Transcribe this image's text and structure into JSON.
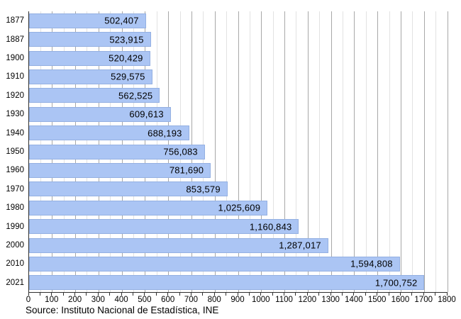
{
  "chart_data": {
    "type": "bar",
    "orientation": "horizontal",
    "title": "",
    "xlabel": "",
    "ylabel": "",
    "categories": [
      "1877",
      "1887",
      "1900",
      "1910",
      "1920",
      "1930",
      "1940",
      "1950",
      "1960",
      "1970",
      "1980",
      "1990",
      "2000",
      "2010",
      "2021"
    ],
    "values": [
      502407,
      523915,
      520429,
      529575,
      562525,
      609613,
      688193,
      756083,
      781690,
      853579,
      1025609,
      1160843,
      1287017,
      1594808,
      1700752
    ],
    "value_labels": [
      "502,407",
      "523,915",
      "520,429",
      "529,575",
      "562,525",
      "609,613",
      "688,193",
      "756,083",
      "781,690",
      "853,579",
      "1,025,609",
      "1,160,843",
      "1,287,017",
      "1,594,808",
      "1,700,752"
    ],
    "xlim": [
      0,
      1800
    ],
    "axis_value_divisor": 1000,
    "x_tick_labels": [
      "0",
      "100",
      "200",
      "300",
      "400",
      "500",
      "600",
      "700",
      "800",
      "900",
      "1000",
      "1100",
      "1200",
      "1300",
      "1400",
      "1500",
      "1600",
      "1700",
      "1800"
    ],
    "x_major_tick_interval": 100,
    "x_minor_tick_interval": 50,
    "grid": "vertical",
    "legend": "none",
    "colors": {
      "bar_fill": "#abc5f4",
      "bar_border": "#94b0e2",
      "major_grid": "#a8a8a8",
      "minor_grid": "#e2e2e2",
      "axis": "#2f2f2f",
      "label_text": "#000000"
    }
  },
  "source": {
    "label": "Source: Instituto Nacional de Estadística, INE"
  }
}
